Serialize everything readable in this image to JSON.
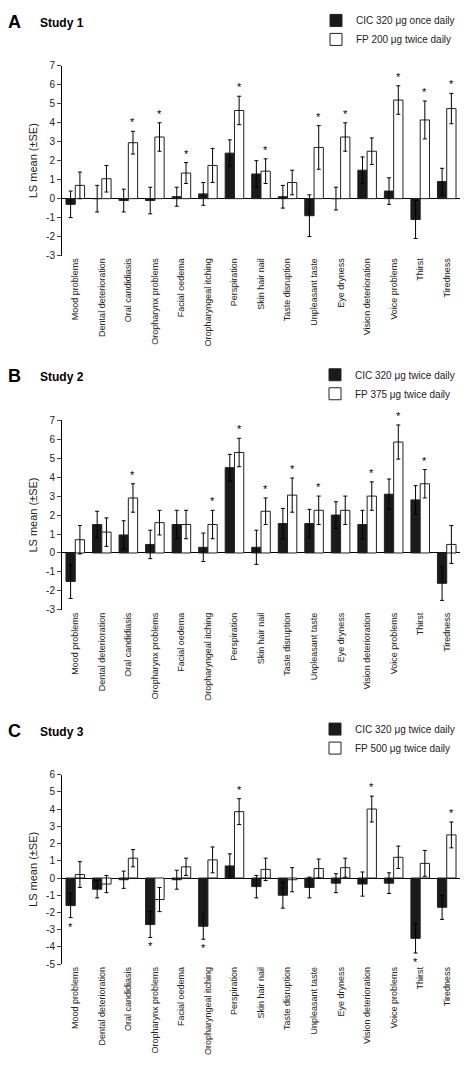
{
  "chart_data": [
    {
      "type": "bar",
      "title": "Study 1",
      "annotations": [
        "A"
      ],
      "ylabel": "LS mean (±SE)",
      "categories": [
        "Mood problems",
        "Dental deterioration",
        "Oral candidiasis",
        "Oropharynx problems",
        "Facial oedema",
        "Oropharyngeal itching",
        "Perspiration",
        "Skin hair nail",
        "Taste disruption",
        "Unpleasant taste",
        "Eye dryness",
        "Vision deterioration",
        "Voice problems",
        "Thirst",
        "Tiredness"
      ],
      "series": [
        {
          "name": "CIC 320 μg once daily",
          "color": "#1a1a1a",
          "values": [
            -0.3,
            0.0,
            -0.1,
            -0.1,
            0.1,
            0.25,
            2.4,
            1.3,
            0.1,
            -0.9,
            0.0,
            1.5,
            0.4,
            -1.1,
            0.9
          ],
          "errors": [
            0.7,
            0.7,
            0.6,
            0.7,
            0.5,
            0.6,
            0.7,
            0.7,
            0.6,
            1.1,
            0.6,
            0.7,
            0.7,
            1.0,
            0.7
          ]
        },
        {
          "name": "FP 200 μg twice daily",
          "color": "#ffffff",
          "values": [
            0.7,
            1.05,
            2.95,
            3.25,
            1.35,
            1.75,
            4.65,
            1.45,
            0.85,
            2.7,
            3.25,
            2.5,
            5.2,
            4.15,
            4.75
          ],
          "errors": [
            0.7,
            0.7,
            0.6,
            0.75,
            0.55,
            0.9,
            0.75,
            0.65,
            0.65,
            1.15,
            0.75,
            0.7,
            0.75,
            1.0,
            0.8
          ],
          "significance": [
            null,
            null,
            "*",
            "*",
            "*",
            null,
            "*",
            "*",
            null,
            "*",
            "*",
            null,
            "*",
            "*",
            "*"
          ]
        }
      ],
      "ylim": [
        -3,
        7
      ],
      "yticks": [
        -3,
        -2,
        -1,
        0,
        1,
        2,
        3,
        4,
        5,
        6,
        7
      ],
      "grid": false,
      "legend": "upper right"
    },
    {
      "type": "bar",
      "title": "Study 2",
      "annotations": [
        "B"
      ],
      "ylabel": "LS mean (±SE)",
      "categories": [
        "Mood problems",
        "Dental deterioration",
        "Oral candidiasis",
        "Oropharynx problems",
        "Facial oedema",
        "Oropharyngeal itching",
        "Perspiration",
        "Skin hair nail",
        "Taste disruption",
        "Unpleasant taste",
        "Eye dryness",
        "Vision deterioration",
        "Voice problems",
        "Thirst",
        "Tiredness"
      ],
      "series": [
        {
          "name": "CIC 320 μg twice daily",
          "color": "#1a1a1a",
          "values": [
            -1.5,
            1.5,
            0.95,
            0.45,
            1.5,
            0.3,
            4.5,
            0.3,
            1.55,
            1.55,
            2.0,
            1.5,
            3.1,
            2.8,
            -1.6
          ],
          "errors": [
            0.9,
            0.7,
            0.75,
            0.75,
            0.75,
            0.75,
            0.7,
            0.9,
            0.8,
            0.75,
            0.7,
            0.75,
            0.8,
            0.75,
            0.9
          ]
        },
        {
          "name": "FP 375 μg twice daily",
          "color": "#ffffff",
          "values": [
            0.7,
            1.1,
            2.9,
            1.6,
            1.5,
            1.5,
            5.3,
            2.2,
            3.05,
            2.25,
            2.25,
            3.0,
            5.85,
            3.65,
            0.45
          ],
          "errors": [
            0.75,
            0.75,
            0.75,
            0.65,
            0.75,
            0.75,
            0.75,
            0.7,
            0.9,
            0.75,
            0.75,
            0.75,
            0.9,
            0.75,
            1.0
          ],
          "significance": [
            null,
            null,
            "*",
            null,
            null,
            "*",
            "*",
            "*",
            "*",
            "*",
            null,
            "*",
            "*",
            "*",
            null
          ]
        }
      ],
      "ylim": [
        -3,
        7
      ],
      "yticks": [
        -3,
        -2,
        -1,
        0,
        1,
        2,
        3,
        4,
        5,
        6,
        7
      ],
      "grid": false,
      "legend": "upper right"
    },
    {
      "type": "bar",
      "title": "Study 3",
      "annotations": [
        "C"
      ],
      "ylabel": "LS mean (±SE)",
      "categories": [
        "Mood problems",
        "Dental deterioration",
        "Oral candidiasis",
        "Oropharynx problems",
        "Facial oedema",
        "Oropharyngeal itching",
        "Perspiration",
        "Skin hair nail",
        "Taste disruption",
        "Unpleasant taste",
        "Eye dryness",
        "Vision deterioration",
        "Voice problems",
        "Thirst",
        "Tiredness"
      ],
      "series": [
        {
          "name": "CIC 320 μg twice daily",
          "color": "#1a1a1a",
          "values": [
            -1.6,
            -0.65,
            -0.1,
            -2.7,
            -0.1,
            -2.8,
            0.7,
            -0.5,
            -1.0,
            -0.55,
            -0.3,
            -0.35,
            -0.3,
            -3.5,
            -1.7
          ],
          "errors": [
            0.7,
            0.5,
            0.5,
            0.75,
            0.55,
            0.75,
            0.7,
            0.65,
            0.75,
            0.6,
            0.55,
            0.7,
            0.6,
            0.85,
            0.7
          ],
          "significance": [
            "*",
            null,
            null,
            "*",
            null,
            "*",
            null,
            null,
            null,
            null,
            null,
            null,
            null,
            "*",
            null
          ]
        },
        {
          "name": "FP 500 μg twice daily",
          "color": "#ffffff",
          "values": [
            0.2,
            -0.35,
            1.15,
            -1.25,
            0.65,
            1.05,
            3.85,
            0.5,
            -0.1,
            0.55,
            0.6,
            4.0,
            1.2,
            0.85,
            2.5
          ],
          "errors": [
            0.75,
            0.5,
            0.5,
            0.7,
            0.5,
            0.75,
            0.75,
            0.65,
            0.7,
            0.55,
            0.55,
            0.75,
            0.65,
            0.75,
            0.75
          ],
          "significance": [
            null,
            null,
            null,
            null,
            null,
            null,
            "*",
            null,
            null,
            null,
            null,
            "*",
            null,
            null,
            "*"
          ]
        }
      ],
      "ylim": [
        -5,
        6
      ],
      "yticks": [
        -5,
        -4,
        -3,
        -2,
        -1,
        0,
        1,
        2,
        3,
        4,
        5,
        6
      ],
      "grid": false,
      "legend": "upper right"
    }
  ]
}
